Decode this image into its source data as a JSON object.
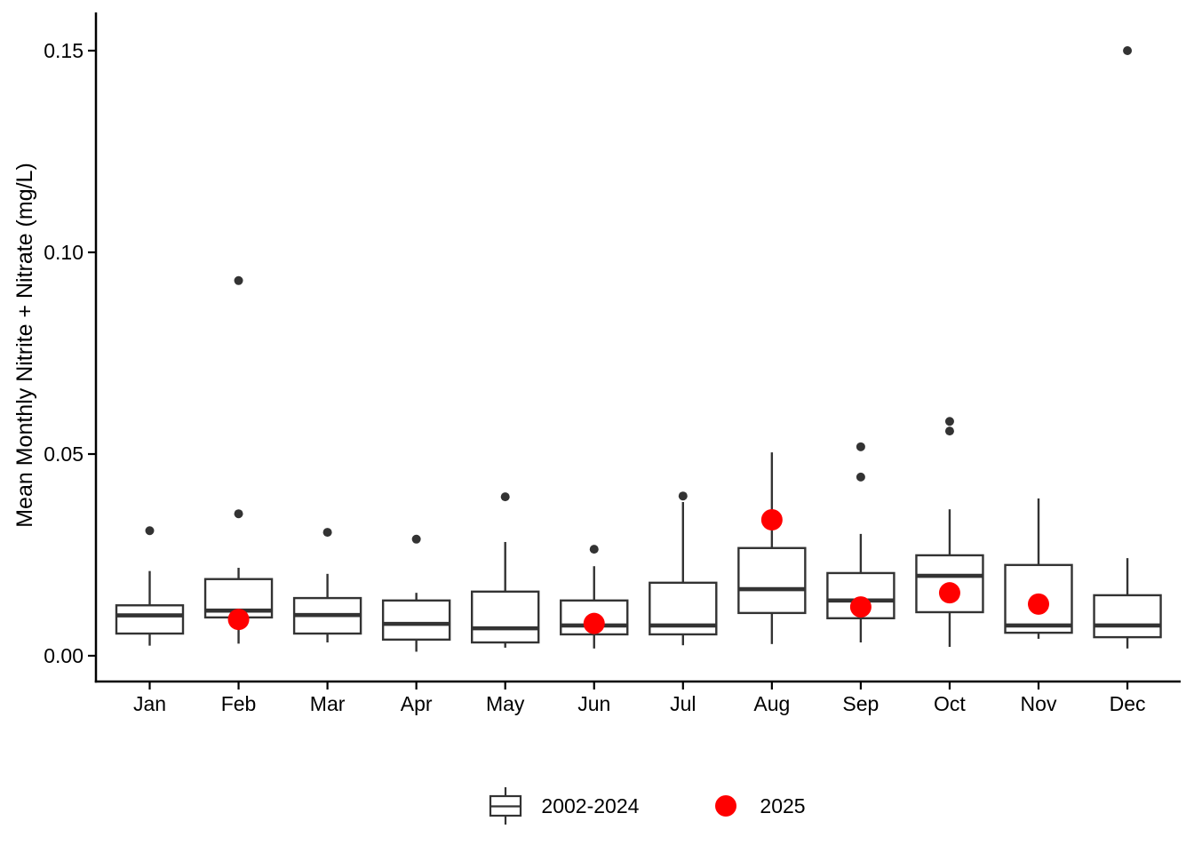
{
  "figure": {
    "background": "#ffffff"
  },
  "chart_data": {
    "type": "boxplot",
    "title": "",
    "xlabel": "",
    "ylabel": "Mean Monthly Nitrite + Nitrate (mg/L)",
    "categories": [
      "Jan",
      "Feb",
      "Mar",
      "Apr",
      "May",
      "Jun",
      "Jul",
      "Aug",
      "Sep",
      "Oct",
      "Nov",
      "Dec"
    ],
    "y_tick_labels": [
      "0.00",
      "0.05",
      "0.10",
      "0.15"
    ],
    "y_tick_values": [
      0,
      0.05,
      0.1,
      0.15
    ],
    "ylim": [
      -0.005,
      0.158
    ],
    "grid": false,
    "legend_position": "bottom",
    "series": [
      {
        "name": "2002-2024",
        "type": "box",
        "boxes": [
          {
            "month": "Jan",
            "whislo": 0.0025,
            "q1": 0.0055,
            "med": 0.01,
            "q3": 0.0125,
            "whishi": 0.021,
            "outliers": [
              0.031
            ]
          },
          {
            "month": "Feb",
            "whislo": 0.003,
            "q1": 0.0095,
            "med": 0.0112,
            "q3": 0.019,
            "whishi": 0.0218,
            "outliers": [
              0.0352,
              0.093
            ]
          },
          {
            "month": "Mar",
            "whislo": 0.0033,
            "q1": 0.0055,
            "med": 0.0101,
            "q3": 0.0143,
            "whishi": 0.0203,
            "outliers": [
              0.0306
            ]
          },
          {
            "month": "Apr",
            "whislo": 0.001,
            "q1": 0.004,
            "med": 0.0079,
            "q3": 0.0137,
            "whishi": 0.0156,
            "outliers": [
              0.0289
            ]
          },
          {
            "month": "May",
            "whislo": 0.002,
            "q1": 0.0033,
            "med": 0.0068,
            "q3": 0.0159,
            "whishi": 0.0282,
            "outliers": [
              0.0394
            ]
          },
          {
            "month": "Jun",
            "whislo": 0.0018,
            "q1": 0.0053,
            "med": 0.0075,
            "q3": 0.0137,
            "whishi": 0.0222,
            "outliers": [
              0.0264
            ]
          },
          {
            "month": "Jul",
            "whislo": 0.0026,
            "q1": 0.0053,
            "med": 0.0075,
            "q3": 0.0181,
            "whishi": 0.0381,
            "outliers": [
              0.0396
            ]
          },
          {
            "month": "Aug",
            "whislo": 0.0029,
            "q1": 0.0106,
            "med": 0.0165,
            "q3": 0.0267,
            "whishi": 0.0504,
            "outliers": []
          },
          {
            "month": "Sep",
            "whislo": 0.0033,
            "q1": 0.0093,
            "med": 0.0137,
            "q3": 0.0205,
            "whishi": 0.0302,
            "outliers": [
              0.0443,
              0.0518
            ]
          },
          {
            "month": "Oct",
            "whislo": 0.0022,
            "q1": 0.0108,
            "med": 0.0198,
            "q3": 0.0249,
            "whishi": 0.0363,
            "outliers": [
              0.0557,
              0.0581
            ]
          },
          {
            "month": "Nov",
            "whislo": 0.0042,
            "q1": 0.0057,
            "med": 0.0075,
            "q3": 0.0225,
            "whishi": 0.039,
            "outliers": []
          },
          {
            "month": "Dec",
            "whislo": 0.0018,
            "q1": 0.0046,
            "med": 0.0075,
            "q3": 0.015,
            "whishi": 0.0242,
            "outliers": [
              0.15
            ]
          }
        ]
      },
      {
        "name": "2025",
        "type": "point",
        "points": [
          {
            "month": "Feb",
            "value": 0.009
          },
          {
            "month": "Jun",
            "value": 0.008
          },
          {
            "month": "Aug",
            "value": 0.0337
          },
          {
            "month": "Sep",
            "value": 0.0121
          },
          {
            "month": "Oct",
            "value": 0.0156
          },
          {
            "month": "Nov",
            "value": 0.0128
          }
        ]
      }
    ],
    "colors": {
      "box_stroke": "#333333",
      "box_fill": "#ffffff",
      "outlier_dot": "#333333",
      "point_2025": "#ff0000",
      "axis": "#000000",
      "text": "#000000"
    }
  }
}
